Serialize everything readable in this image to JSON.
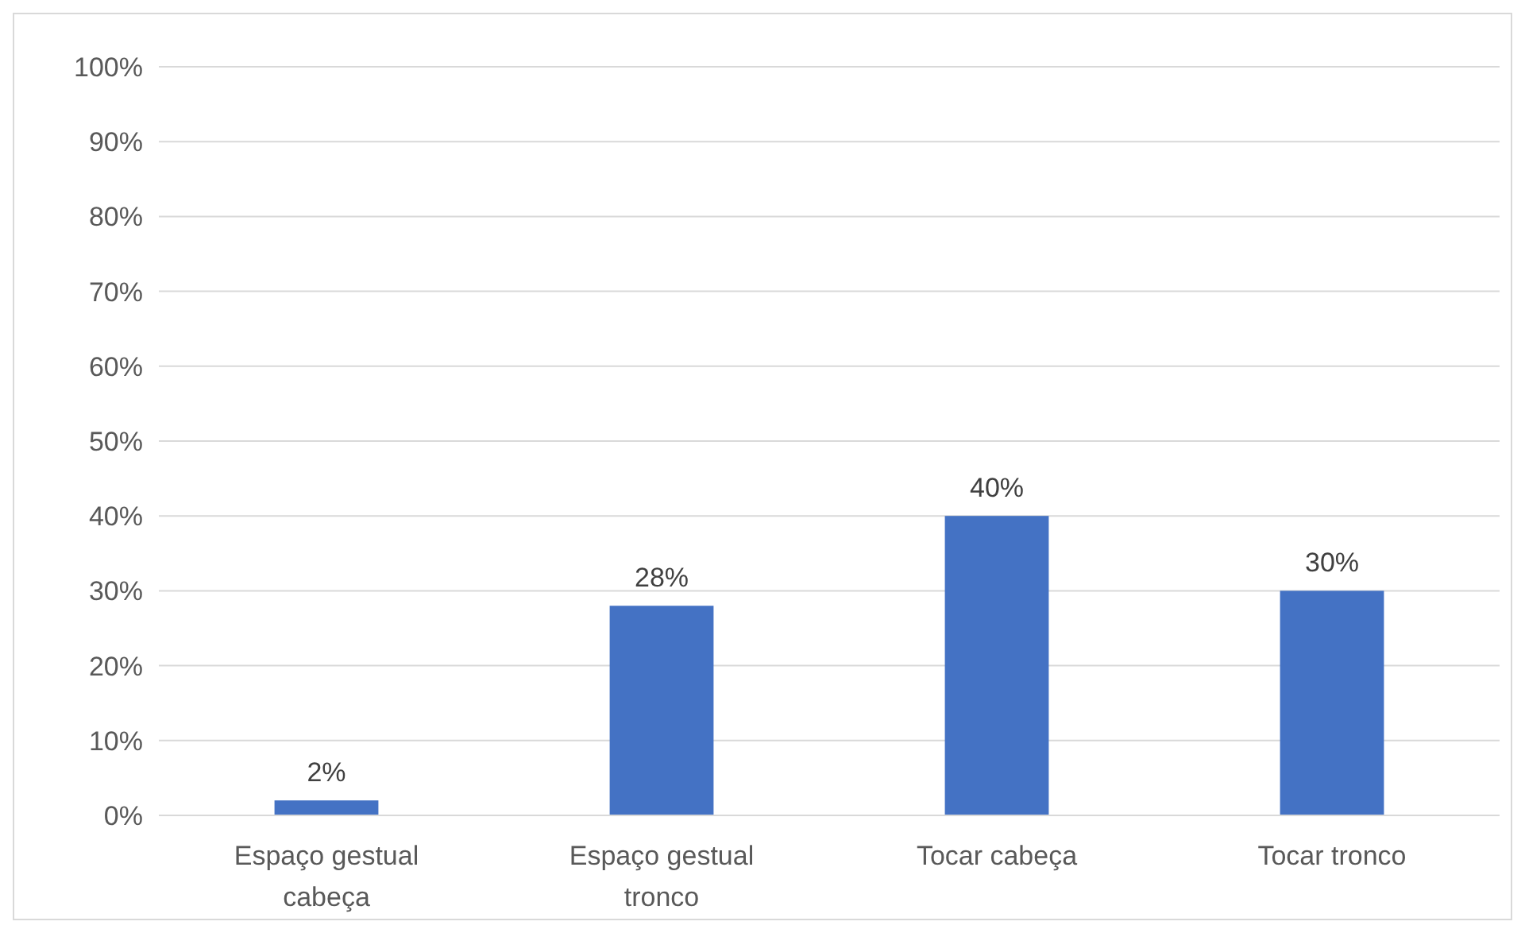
{
  "chart_data": {
    "type": "bar",
    "categories": [
      "Espaço gestual cabeça",
      "Espaço gestual tronco",
      "Tocar cabeça",
      "Tocar tronco"
    ],
    "values": [
      2,
      28,
      40,
      30
    ],
    "color": "#4472c4",
    "value_labels": [
      "2%",
      "28%",
      "40%",
      "30%"
    ],
    "ylim": [
      0,
      100
    ],
    "yticks": [
      {
        "value": 0,
        "label": "0%"
      },
      {
        "value": 10,
        "label": "10%"
      },
      {
        "value": 20,
        "label": "20%"
      },
      {
        "value": 30,
        "label": "30%"
      },
      {
        "value": 40,
        "label": "40%"
      },
      {
        "value": 50,
        "label": "50%"
      },
      {
        "value": 60,
        "label": "60%"
      },
      {
        "value": 70,
        "label": "70%"
      },
      {
        "value": 80,
        "label": "80%"
      },
      {
        "value": 90,
        "label": "90%"
      },
      {
        "value": 100,
        "label": "100%"
      }
    ],
    "grid": "y"
  }
}
